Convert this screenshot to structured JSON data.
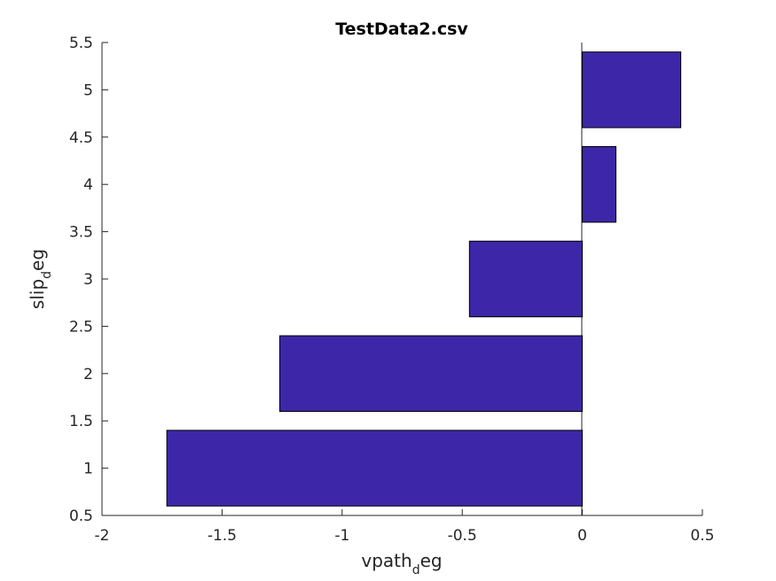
{
  "chart_data": {
    "type": "bar",
    "orientation": "horizontal",
    "title": "TestData2.csv",
    "xlabel": {
      "main": "vpath",
      "sub": "d",
      "rest": "eg"
    },
    "ylabel": {
      "main": "slip",
      "sub": "d",
      "rest": "eg"
    },
    "categories": [
      1,
      2,
      3,
      4,
      5
    ],
    "values": [
      -1.73,
      -1.26,
      -0.47,
      0.14,
      0.41
    ],
    "xlim": [
      -2,
      0.5
    ],
    "ylim": [
      0.5,
      5.5
    ],
    "xticks": [
      "-2",
      "-1.5",
      "-1",
      "-0.5",
      "0",
      "0.5"
    ],
    "yticks": [
      "0.5",
      "1",
      "1.5",
      "2",
      "2.5",
      "3",
      "3.5",
      "4",
      "4.5",
      "5",
      "5.5"
    ],
    "bar_color": "#3d27a8",
    "grid": false
  }
}
